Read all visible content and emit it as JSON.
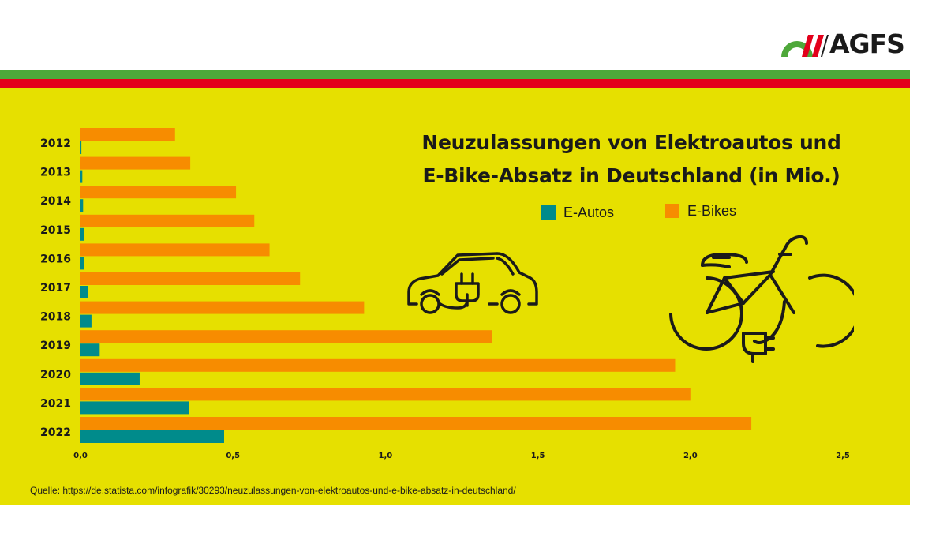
{
  "brand": {
    "logo_text": "AGFS"
  },
  "colors": {
    "panel": "#e6e000",
    "stripe_green": "#4ea83a",
    "stripe_red": "#e3001b",
    "e_autos": "#008b8b",
    "e_bikes": "#f78c00"
  },
  "chart_data": {
    "type": "bar",
    "orientation": "horizontal",
    "title": "Neuzulassungen von Elektroautos und E-Bike-Absatz in Deutschland (in Mio.)",
    "title_lines": [
      "Neuzulassungen von Elektroautos und",
      "E-Bike-Absatz in Deutschland (in Mio.)"
    ],
    "categories": [
      "2012",
      "2013",
      "2014",
      "2015",
      "2016",
      "2017",
      "2018",
      "2019",
      "2020",
      "2021",
      "2022"
    ],
    "series": [
      {
        "name": "E-Bikes",
        "color": "#f78c00",
        "values": [
          0.31,
          0.36,
          0.51,
          0.57,
          0.62,
          0.72,
          0.93,
          1.35,
          1.95,
          2.0,
          2.2
        ]
      },
      {
        "name": "E-Autos",
        "color": "#008b8b",
        "values": [
          0.0029,
          0.006,
          0.0085,
          0.012,
          0.011,
          0.025,
          0.036,
          0.063,
          0.194,
          0.356,
          0.471
        ]
      }
    ],
    "xlim": [
      0,
      2.5
    ],
    "x_ticks": [
      0,
      0.5,
      1.0,
      1.5,
      2.0,
      2.5
    ],
    "x_tick_labels": [
      "0,0",
      "0,5",
      "1,0",
      "1,5",
      "2,0",
      "2,5"
    ],
    "xlabel": "",
    "ylabel": "",
    "grid": false,
    "legend_placement": "top-right"
  },
  "legend": {
    "e_autos": "E-Autos",
    "e_bikes": "E-Bikes"
  },
  "icons": [
    "electric-car-icon",
    "e-bike-icon"
  ],
  "source": "Quelle: https://de.statista.com/infografik/30293/neuzulassungen-von-elektroautos-und-e-bike-absatz-in-deutschland/"
}
